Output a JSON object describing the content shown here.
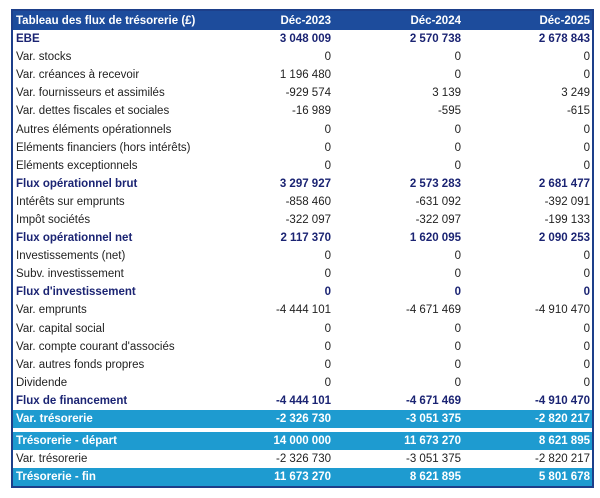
{
  "table": {
    "title": "Tableau des flux de trésorerie (£)",
    "columns": [
      "Déc-2023",
      "Déc-2024",
      "Déc-2025"
    ],
    "rows": [
      {
        "label": "EBE",
        "values": [
          "3 048 009",
          "2 570 738",
          "2 678 843"
        ],
        "style": "bold"
      },
      {
        "label": "Var. stocks",
        "values": [
          "0",
          "0",
          "0"
        ],
        "style": ""
      },
      {
        "label": "Var. créances à recevoir",
        "values": [
          "1 196 480",
          "0",
          "0"
        ],
        "style": ""
      },
      {
        "label": "Var. fournisseurs et assimilés",
        "values": [
          "-929 574",
          "3 139",
          "3 249"
        ],
        "style": ""
      },
      {
        "label": "Var. dettes fiscales et sociales",
        "values": [
          "-16 989",
          "-595",
          "-615"
        ],
        "style": ""
      },
      {
        "label": "Autres éléments opérationnels",
        "values": [
          "0",
          "0",
          "0"
        ],
        "style": ""
      },
      {
        "label": "Eléments financiers (hors intérêts)",
        "values": [
          "0",
          "0",
          "0"
        ],
        "style": ""
      },
      {
        "label": "Eléments exceptionnels",
        "values": [
          "0",
          "0",
          "0"
        ],
        "style": ""
      },
      {
        "label": "Flux opérationnel brut",
        "values": [
          "3 297 927",
          "2 573 283",
          "2 681 477"
        ],
        "style": "bold"
      },
      {
        "label": "Intérêts sur emprunts",
        "values": [
          "-858 460",
          "-631 092",
          "-392 091"
        ],
        "style": ""
      },
      {
        "label": "Impôt sociétés",
        "values": [
          "-322 097",
          "-322 097",
          "-199 133"
        ],
        "style": ""
      },
      {
        "label": "Flux opérationnel net",
        "values": [
          "2 117 370",
          "1 620 095",
          "2 090 253"
        ],
        "style": "bold"
      },
      {
        "label": "Investissements (net)",
        "values": [
          "0",
          "0",
          "0"
        ],
        "style": ""
      },
      {
        "label": "Subv. investissement",
        "values": [
          "0",
          "0",
          "0"
        ],
        "style": ""
      },
      {
        "label": "Flux d'investissement",
        "values": [
          "0",
          "0",
          "0"
        ],
        "style": "bold"
      },
      {
        "label": "Var. emprunts",
        "values": [
          "-4 444 101",
          "-4 671 469",
          "-4 910 470"
        ],
        "style": ""
      },
      {
        "label": "Var. capital social",
        "values": [
          "0",
          "0",
          "0"
        ],
        "style": ""
      },
      {
        "label": "Var. compte courant d'associés",
        "values": [
          "0",
          "0",
          "0"
        ],
        "style": ""
      },
      {
        "label": "Var. autres fonds propres",
        "values": [
          "0",
          "0",
          "0"
        ],
        "style": ""
      },
      {
        "label": "Dividende",
        "values": [
          "0",
          "0",
          "0"
        ],
        "style": ""
      },
      {
        "label": "Flux de financement",
        "values": [
          "-4 444 101",
          "-4 671 469",
          "-4 910 470"
        ],
        "style": "bold"
      },
      {
        "label": "Var. trésorerie",
        "values": [
          "-2 326 730",
          "-3 051 375",
          "-2 820 217"
        ],
        "style": "teal"
      }
    ],
    "summary": [
      {
        "label": "Trésorerie - départ",
        "values": [
          "14 000 000",
          "11 673 270",
          "8 621 895"
        ],
        "style": "teal"
      },
      {
        "label": "Var. trésorerie",
        "values": [
          "-2 326 730",
          "-3 051 375",
          "-2 820 217"
        ],
        "style": ""
      },
      {
        "label": "Trésorerie - fin",
        "values": [
          "11 673 270",
          "8 621 895",
          "5 801 678"
        ],
        "style": "teal"
      }
    ]
  },
  "colors": {
    "header": "#1d4c9c",
    "bold_text": "#1b2473",
    "highlight": "#1e9bd0",
    "border": "#1d3f8a"
  }
}
